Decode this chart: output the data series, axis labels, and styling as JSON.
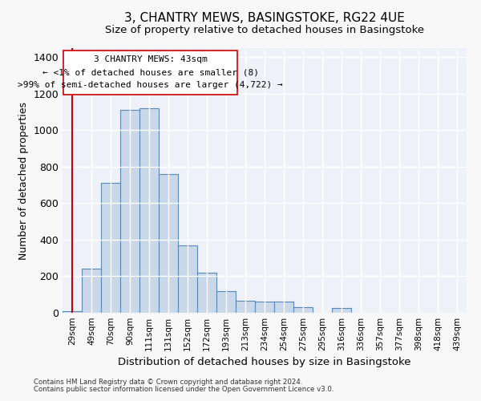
{
  "title": "3, CHANTRY MEWS, BASINGSTOKE, RG22 4UE",
  "subtitle": "Size of property relative to detached houses in Basingstoke",
  "xlabel": "Distribution of detached houses by size in Basingstoke",
  "ylabel": "Number of detached properties",
  "bar_color": "#c8d8e8",
  "bar_edge_color": "#5588bb",
  "background_color": "#eef2f8",
  "grid_color": "#ffffff",
  "categories": [
    "29sqm",
    "49sqm",
    "70sqm",
    "90sqm",
    "111sqm",
    "131sqm",
    "152sqm",
    "172sqm",
    "193sqm",
    "213sqm",
    "234sqm",
    "254sqm",
    "275sqm",
    "295sqm",
    "316sqm",
    "336sqm",
    "357sqm",
    "377sqm",
    "398sqm",
    "418sqm",
    "439sqm"
  ],
  "values": [
    8,
    240,
    710,
    1110,
    1120,
    760,
    370,
    220,
    120,
    65,
    60,
    60,
    30,
    0,
    25,
    0,
    0,
    0,
    0,
    0,
    0
  ],
  "ylim": [
    0,
    1450
  ],
  "yticks": [
    0,
    200,
    400,
    600,
    800,
    1000,
    1200,
    1400
  ],
  "annotation_title": "3 CHANTRY MEWS: 43sqm",
  "annotation_line1": "← <1% of detached houses are smaller (8)",
  "annotation_line2": ">99% of semi-detached houses are larger (4,722) →",
  "red_line_color": "#cc0000",
  "footer1": "Contains HM Land Registry data © Crown copyright and database right 2024.",
  "footer2": "Contains public sector information licensed under the Open Government Licence v3.0."
}
